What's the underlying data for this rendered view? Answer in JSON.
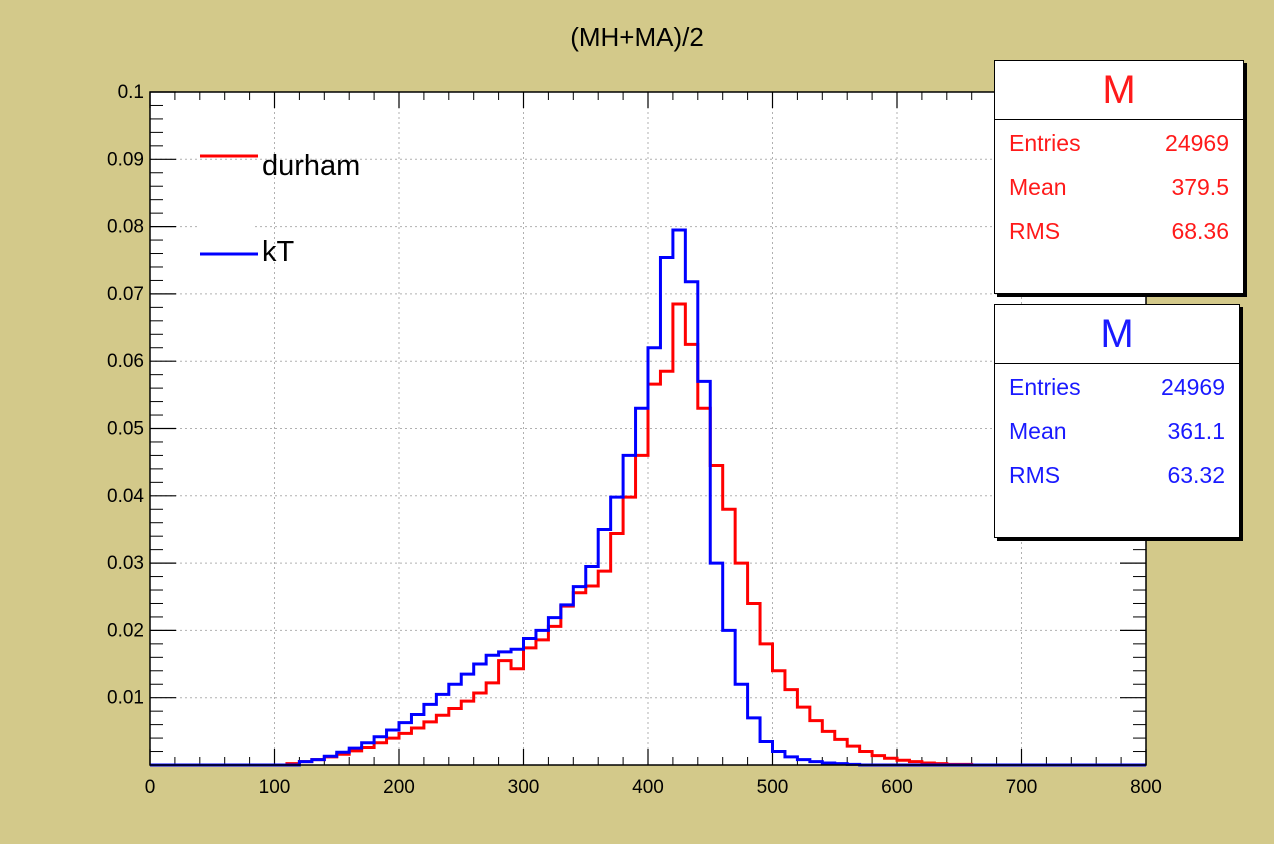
{
  "chart_data": {
    "type": "line",
    "title": "(MH+MA)/2",
    "xlabel": "",
    "ylabel": "",
    "xlim": [
      0,
      800
    ],
    "ylim": [
      0,
      0.1
    ],
    "grid": true,
    "legend_position": "top-left",
    "x_ticks": [
      "0",
      "100",
      "200",
      "300",
      "400",
      "500",
      "600",
      "700",
      "800"
    ],
    "y_ticks": [
      "0.01",
      "0.02",
      "0.03",
      "0.04",
      "0.05",
      "0.06",
      "0.07",
      "0.08",
      "0.09",
      "0.1"
    ],
    "bin_width": 10,
    "x": [
      0,
      10,
      20,
      30,
      40,
      50,
      60,
      70,
      80,
      90,
      100,
      110,
      120,
      130,
      140,
      150,
      160,
      170,
      180,
      190,
      200,
      210,
      220,
      230,
      240,
      250,
      260,
      270,
      280,
      290,
      300,
      310,
      320,
      330,
      340,
      350,
      360,
      370,
      380,
      390,
      400,
      410,
      420,
      430,
      440,
      450,
      460,
      470,
      480,
      490,
      500,
      510,
      520,
      530,
      540,
      550,
      560,
      570,
      580,
      590,
      600,
      610,
      620,
      630,
      640,
      650,
      660,
      670,
      680,
      690,
      700,
      710,
      720,
      730,
      740,
      750,
      760,
      770,
      780,
      790
    ],
    "series": [
      {
        "name": "durham",
        "color": "#ff0000",
        "values": [
          0,
          0,
          0,
          0,
          0,
          0,
          0,
          0,
          0,
          0,
          0,
          0.0002,
          0.0005,
          0.0008,
          0.0012,
          0.0016,
          0.0021,
          0.0026,
          0.0033,
          0.004,
          0.0047,
          0.0055,
          0.0064,
          0.0074,
          0.0084,
          0.0095,
          0.0107,
          0.0122,
          0.0155,
          0.0143,
          0.0174,
          0.0186,
          0.0206,
          0.0236,
          0.0256,
          0.0266,
          0.0288,
          0.0344,
          0.0398,
          0.046,
          0.0566,
          0.0585,
          0.0685,
          0.0625,
          0.053,
          0.0445,
          0.038,
          0.03,
          0.024,
          0.018,
          0.014,
          0.0112,
          0.0086,
          0.0066,
          0.005,
          0.0038,
          0.0028,
          0.002,
          0.0014,
          0.001,
          0.0007,
          0.0005,
          0.0003,
          0.0002,
          0.0001,
          0.0001,
          0,
          0,
          0,
          0,
          0,
          0,
          0,
          0,
          0,
          0,
          0,
          0,
          0,
          0
        ]
      },
      {
        "name": "kT",
        "color": "#0000ff",
        "values": [
          0,
          0,
          0,
          0,
          0,
          0,
          0,
          0,
          0,
          0,
          0,
          0,
          0.0005,
          0.0008,
          0.0013,
          0.0019,
          0.0025,
          0.0033,
          0.0042,
          0.0052,
          0.0063,
          0.0075,
          0.009,
          0.0105,
          0.012,
          0.0135,
          0.015,
          0.0163,
          0.0168,
          0.0172,
          0.0188,
          0.02,
          0.0219,
          0.0238,
          0.0265,
          0.0295,
          0.035,
          0.0398,
          0.046,
          0.053,
          0.062,
          0.0754,
          0.0795,
          0.0718,
          0.057,
          0.03,
          0.02,
          0.012,
          0.007,
          0.0035,
          0.002,
          0.0012,
          0.0008,
          0.0005,
          0.0003,
          0.0002,
          0.0001,
          0,
          0,
          0,
          0,
          0,
          0,
          0,
          0,
          0,
          0,
          0,
          0,
          0,
          0,
          0,
          0,
          0,
          0,
          0,
          0,
          0,
          0,
          0
        ]
      }
    ]
  },
  "stats": [
    {
      "title": "M",
      "color": "#ff1a1a",
      "rows": [
        {
          "label": "Entries",
          "value": "24969"
        },
        {
          "label": "Mean",
          "value": "379.5"
        },
        {
          "label": "RMS",
          "value": "68.36"
        }
      ]
    },
    {
      "title": "M",
      "color": "#1a1aff",
      "rows": [
        {
          "label": "Entries",
          "value": "24969"
        },
        {
          "label": "Mean",
          "value": "361.1"
        },
        {
          "label": "RMS",
          "value": "63.32"
        }
      ]
    }
  ]
}
